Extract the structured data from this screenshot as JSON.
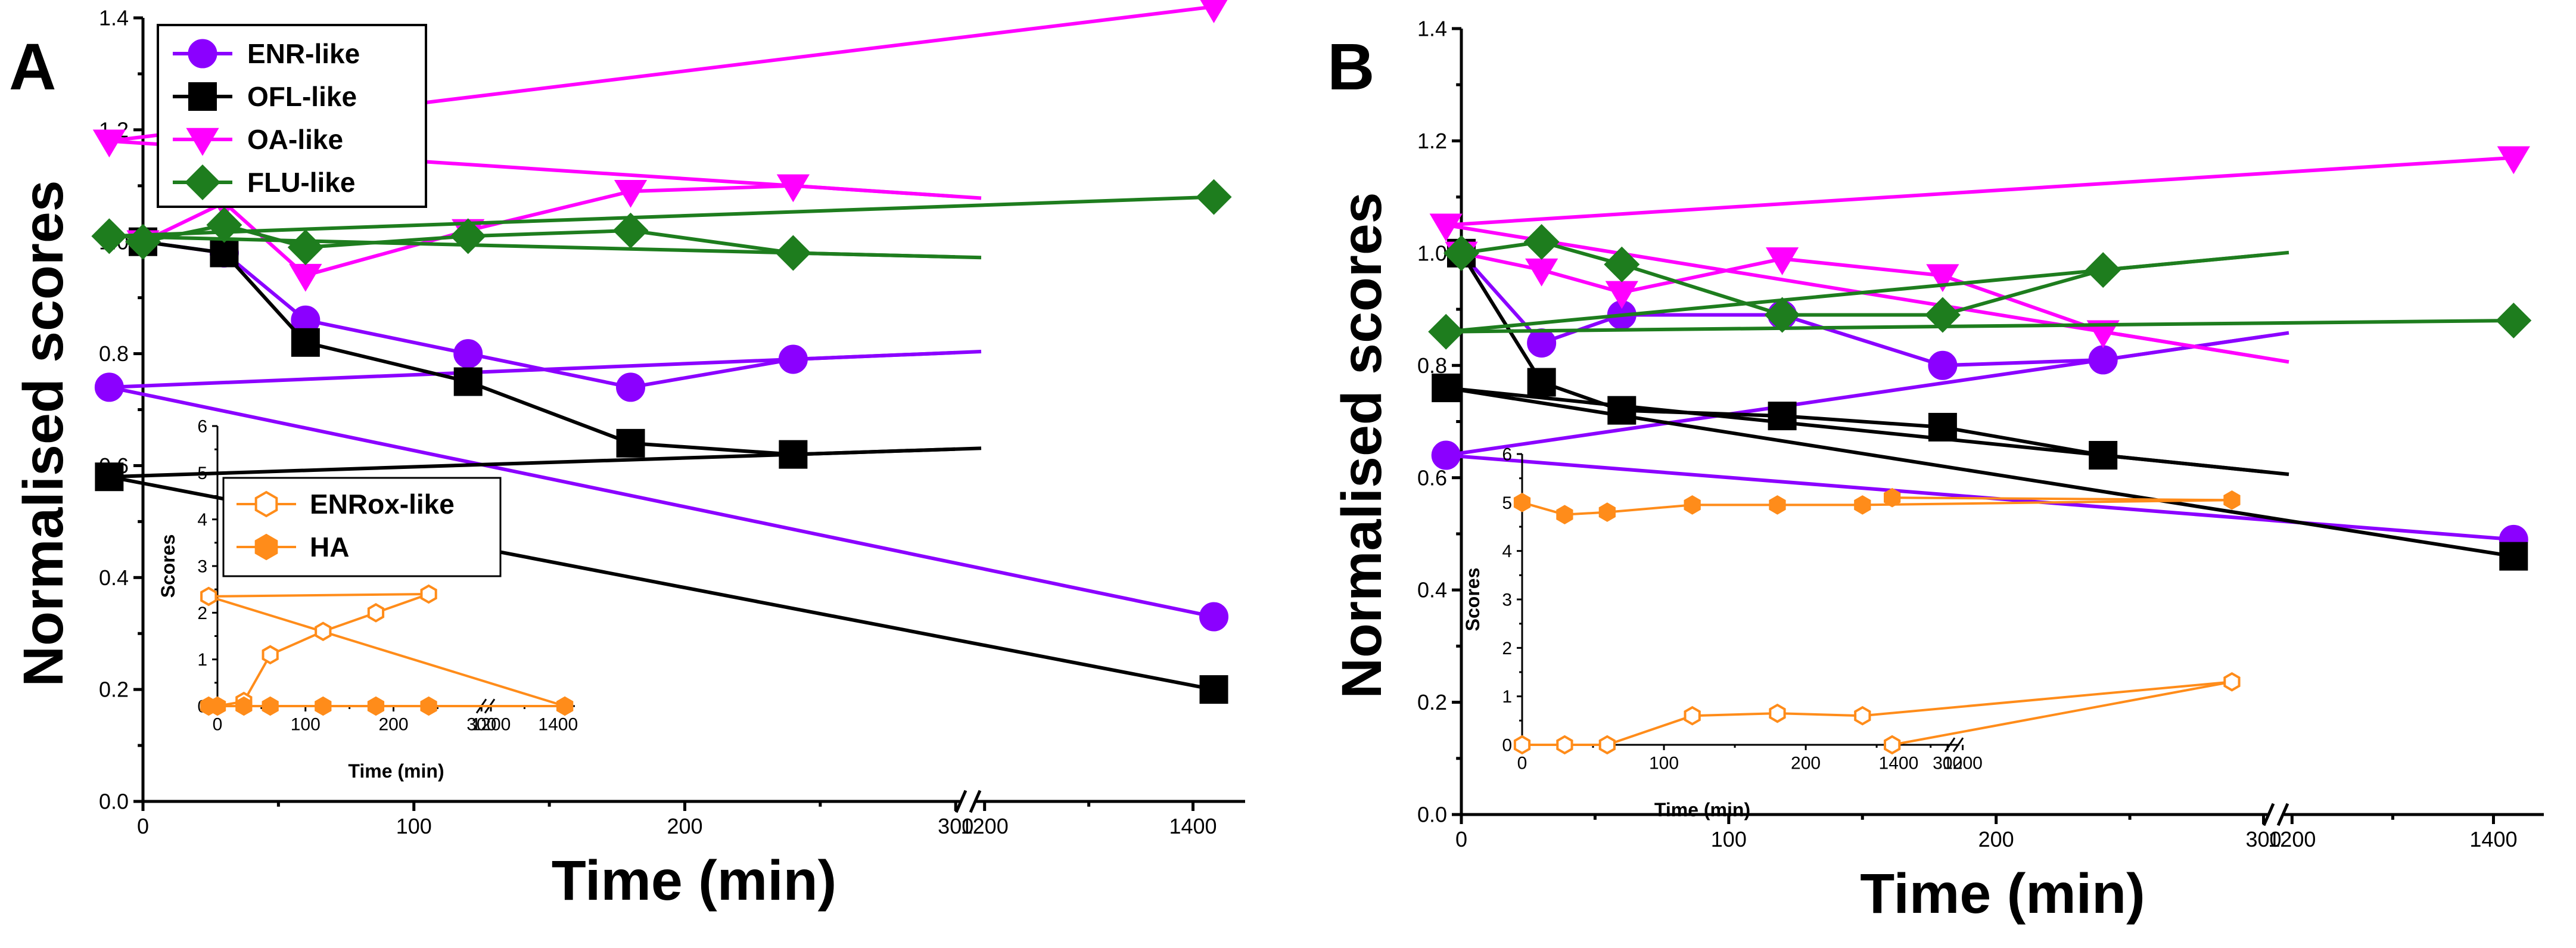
{
  "chart_data": [
    {
      "type": "line",
      "panel": "A",
      "xlabel": "Time (min)",
      "ylabel": "Normalised scores",
      "xlim": [
        0,
        1400
      ],
      "ylim": [
        0,
        1.4
      ],
      "axis_break": "300//1200",
      "x_ticks": [
        "0",
        "100",
        "200",
        "300",
        "1200",
        "1400"
      ],
      "y_ticks": [
        "0.0",
        "0.2",
        "0.4",
        "0.6",
        "0.8",
        "1.0",
        "1.2",
        "1.4"
      ],
      "x": [
        0,
        30,
        60,
        120,
        180,
        240,
        360,
        1420
      ],
      "legend_position": "top-left",
      "series": [
        {
          "name": "ENR-like",
          "color": "#8b00ff",
          "marker": "circle",
          "values": [
            1.0,
            0.98,
            0.86,
            0.8,
            0.74,
            0.79,
            0.74,
            0.33
          ]
        },
        {
          "name": "OFL-like",
          "color": "#000000",
          "marker": "square",
          "values": [
            1.0,
            0.98,
            0.82,
            0.75,
            0.64,
            0.62,
            0.58,
            0.2
          ]
        },
        {
          "name": "OA-like",
          "color": "#ff00ff",
          "marker": "triangle-down",
          "values": [
            1.0,
            1.07,
            0.94,
            1.02,
            1.09,
            1.1,
            1.18,
            1.42
          ]
        },
        {
          "name": "FLU-like",
          "color": "#1e7d1e",
          "marker": "diamond",
          "values": [
            1.0,
            1.03,
            0.99,
            1.01,
            1.02,
            0.98,
            1.01,
            1.08
          ]
        }
      ],
      "inset": {
        "type": "line",
        "xlabel": "Time (min)",
        "ylabel": "Scores",
        "ylim": [
          0,
          6
        ],
        "x_ticks": [
          "0",
          "100",
          "200",
          "300",
          "1200",
          "1400"
        ],
        "y_ticks": [
          "0",
          "1",
          "2",
          "3",
          "4",
          "5",
          "6"
        ],
        "x": [
          0,
          30,
          60,
          120,
          180,
          240,
          360,
          1420
        ],
        "legend_position": "top-right",
        "series": [
          {
            "name": "ENRox-like",
            "color": "#ff8c1a",
            "marker": "hexagon-open",
            "values": [
              0.0,
              0.1,
              1.1,
              1.6,
              2.0,
              2.4,
              2.35,
              0.0
            ]
          },
          {
            "name": "HA",
            "color": "#ff8c1a",
            "marker": "hexagon-filled",
            "values": [
              0.0,
              0.0,
              0.0,
              0.0,
              0.0,
              0.0,
              0.0,
              0.0
            ]
          }
        ]
      }
    },
    {
      "type": "line",
      "panel": "B",
      "xlabel": "Time (min)",
      "ylabel": "Normalised scores",
      "xlim": [
        0,
        1400
      ],
      "ylim": [
        0,
        1.4
      ],
      "axis_break": "300//1200",
      "x_ticks": [
        "0",
        "100",
        "200",
        "300",
        "1200",
        "1400"
      ],
      "y_ticks": [
        "0.0",
        "0.2",
        "0.4",
        "0.6",
        "0.8",
        "1.0",
        "1.2",
        "1.4"
      ],
      "x": [
        0,
        30,
        60,
        120,
        180,
        240,
        360,
        1420
      ],
      "series": [
        {
          "name": "ENR-like",
          "color": "#8b00ff",
          "marker": "circle",
          "values": [
            1.0,
            0.84,
            0.89,
            0.89,
            0.8,
            0.81,
            0.64,
            0.49
          ]
        },
        {
          "name": "OFL-like",
          "color": "#000000",
          "marker": "square",
          "values": [
            1.0,
            0.77,
            0.72,
            0.71,
            0.69,
            0.64,
            0.76,
            0.46
          ]
        },
        {
          "name": "OA-like",
          "color": "#ff00ff",
          "marker": "triangle-down",
          "values": [
            1.0,
            0.97,
            0.93,
            0.99,
            0.96,
            0.86,
            1.05,
            1.17
          ]
        },
        {
          "name": "FLU-like",
          "color": "#1e7d1e",
          "marker": "diamond",
          "values": [
            1.0,
            1.02,
            0.98,
            0.89,
            0.89,
            0.97,
            0.86,
            0.88
          ]
        }
      ],
      "inset": {
        "type": "line",
        "xlabel": "Time (min)",
        "ylabel": "Scores",
        "ylim": [
          0,
          6
        ],
        "x_ticks": [
          "0",
          "100",
          "200",
          "300",
          "1200",
          "1400"
        ],
        "y_ticks": [
          "0",
          "1",
          "2",
          "3",
          "4",
          "5",
          "6"
        ],
        "x": [
          0,
          30,
          60,
          120,
          180,
          240,
          360,
          1420
        ],
        "series": [
          {
            "name": "ENRox-like",
            "color": "#ff8c1a",
            "marker": "hexagon-open",
            "values": [
              0.0,
              0.0,
              0.0,
              0.6,
              0.65,
              0.6,
              1.3,
              0.0
            ]
          },
          {
            "name": "HA",
            "color": "#ff8c1a",
            "marker": "hexagon-filled",
            "values": [
              5.0,
              4.75,
              4.8,
              4.95,
              4.95,
              4.95,
              5.05,
              5.1
            ]
          }
        ]
      }
    }
  ]
}
